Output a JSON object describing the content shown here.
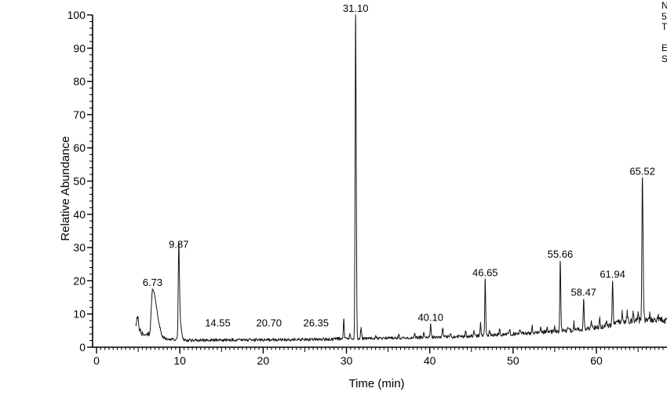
{
  "figure": {
    "background": "#ffffff"
  },
  "annotation": {
    "note": "text block clipped at right edge of screen, only left slivers of characters visible",
    "lines": [
      "N",
      "5",
      "T",
      "",
      "E",
      "S"
    ]
  },
  "chart_data": {
    "type": "line",
    "title": "",
    "xlabel": "Time (min)",
    "ylabel": "Relative Abundance",
    "xlim": [
      0,
      68.5
    ],
    "ylim": [
      0,
      100
    ],
    "x_major_ticks": [
      0,
      10,
      20,
      30,
      40,
      50,
      60
    ],
    "x_tick_labels": [
      "0",
      "10",
      "20",
      "30",
      "40",
      "50",
      "60"
    ],
    "x_minor_step": 0.5,
    "x_medium_step": 5,
    "y_major_step": 10,
    "y_minor_step": 2,
    "y_tick_labels": [
      "0",
      "10",
      "20",
      "30",
      "40",
      "50",
      "60",
      "70",
      "80",
      "90",
      "100"
    ],
    "grid": false,
    "legend": "none",
    "line_color": "#161616",
    "axis_color": "#000000",
    "label_color": "#000000",
    "trace_start": 4.7,
    "trace_end": 68.45,
    "peaks": [
      {
        "rt": 6.73,
        "apex": 17.5,
        "label": "6.73",
        "sl": 0.15,
        "sr": 0.5
      },
      {
        "rt": 9.87,
        "apex": 29.0,
        "label": "9.87",
        "sl": 0.06,
        "sr": 0.08
      },
      {
        "rt": 14.55,
        "apex": 2.3,
        "label": "14.55",
        "tiny": true
      },
      {
        "rt": 20.7,
        "apex": 2.3,
        "label": "20.70",
        "tiny": true
      },
      {
        "rt": 26.35,
        "apex": 2.4,
        "label": "26.35",
        "tiny": true
      },
      {
        "rt": 31.1,
        "apex": 100.0,
        "label": "31.10",
        "sl": 0.06,
        "sr": 0.07
      },
      {
        "rt": 40.1,
        "apex": 7.0,
        "label": "40.10",
        "sl": 0.05,
        "sr": 0.06
      },
      {
        "rt": 46.65,
        "apex": 20.5,
        "label": "46.65",
        "sl": 0.05,
        "sr": 0.06
      },
      {
        "rt": 55.66,
        "apex": 26.0,
        "label": "55.66",
        "sl": 0.05,
        "sr": 0.06
      },
      {
        "rt": 58.47,
        "apex": 14.5,
        "label": "58.47",
        "sl": 0.05,
        "sr": 0.06
      },
      {
        "rt": 61.94,
        "apex": 20.0,
        "label": "61.94",
        "sl": 0.05,
        "sr": 0.06
      },
      {
        "rt": 65.52,
        "apex": 51.0,
        "label": "65.52",
        "sl": 0.06,
        "sr": 0.08
      }
    ],
    "tiny_label_value": 6.3,
    "unlabeled_spikes": [
      [
        10.05,
        5.0,
        0.15
      ],
      [
        29.68,
        6.0,
        0.05
      ],
      [
        30.4,
        1.5,
        0.05
      ],
      [
        31.75,
        3.0,
        0.06
      ],
      [
        33.5,
        1.0,
        0.05
      ],
      [
        36.3,
        1.2,
        0.05
      ],
      [
        38.2,
        1.5,
        0.05
      ],
      [
        39.3,
        1.5,
        0.05
      ],
      [
        41.55,
        3.0,
        0.06
      ],
      [
        42.5,
        1.2,
        0.05
      ],
      [
        44.3,
        1.5,
        0.05
      ],
      [
        45.3,
        1.5,
        0.05
      ],
      [
        46.1,
        4.0,
        0.05
      ],
      [
        47.2,
        1.5,
        0.05
      ],
      [
        48.4,
        2.0,
        0.05
      ],
      [
        49.6,
        1.5,
        0.05
      ],
      [
        50.8,
        1.5,
        0.05
      ],
      [
        52.3,
        2.0,
        0.05
      ],
      [
        53.3,
        1.5,
        0.05
      ],
      [
        54.1,
        2.0,
        0.05
      ],
      [
        55.0,
        1.5,
        0.05
      ],
      [
        56.6,
        1.5,
        0.05
      ],
      [
        57.3,
        2.5,
        0.05
      ],
      [
        59.4,
        2.5,
        0.05
      ],
      [
        60.4,
        2.5,
        0.05
      ],
      [
        61.2,
        2.0,
        0.05
      ],
      [
        63.1,
        2.5,
        0.05
      ],
      [
        63.7,
        2.5,
        0.05
      ],
      [
        64.4,
        2.5,
        0.05
      ],
      [
        65.0,
        2.0,
        0.05
      ],
      [
        66.4,
        2.0,
        0.05
      ],
      [
        67.4,
        1.5,
        0.05
      ]
    ],
    "baseline_anchors": [
      [
        4.7,
        7.5
      ],
      [
        4.95,
        8.8
      ],
      [
        5.1,
        6.0
      ],
      [
        5.25,
        4.3
      ],
      [
        5.6,
        4.0
      ],
      [
        5.95,
        4.3
      ],
      [
        6.3,
        3.8
      ],
      [
        7.0,
        3.2
      ],
      [
        7.8,
        2.6
      ],
      [
        8.6,
        2.4
      ],
      [
        9.6,
        2.4
      ],
      [
        10.4,
        2.1
      ],
      [
        12,
        2.1
      ],
      [
        16,
        2.2
      ],
      [
        20,
        2.2
      ],
      [
        24,
        2.3
      ],
      [
        28,
        2.4
      ],
      [
        29.3,
        2.6
      ],
      [
        30.5,
        2.6
      ],
      [
        32,
        2.6
      ],
      [
        34,
        2.7
      ],
      [
        36,
        2.8
      ],
      [
        38,
        2.9
      ],
      [
        40,
        3.0
      ],
      [
        42,
        3.1
      ],
      [
        44,
        3.3
      ],
      [
        46,
        3.5
      ],
      [
        48,
        3.7
      ],
      [
        50,
        4.0
      ],
      [
        52,
        4.2
      ],
      [
        54,
        4.6
      ],
      [
        56,
        4.9
      ],
      [
        57.5,
        5.2
      ],
      [
        59,
        5.6
      ],
      [
        60,
        6.0
      ],
      [
        61,
        6.3
      ],
      [
        62,
        6.8
      ],
      [
        62.8,
        7.6
      ],
      [
        63.5,
        7.9
      ],
      [
        64.5,
        8.2
      ],
      [
        65.5,
        8.0
      ],
      [
        66,
        8.4
      ],
      [
        66.8,
        8.0
      ],
      [
        67.5,
        8.3
      ],
      [
        68.45,
        7.8
      ]
    ]
  }
}
